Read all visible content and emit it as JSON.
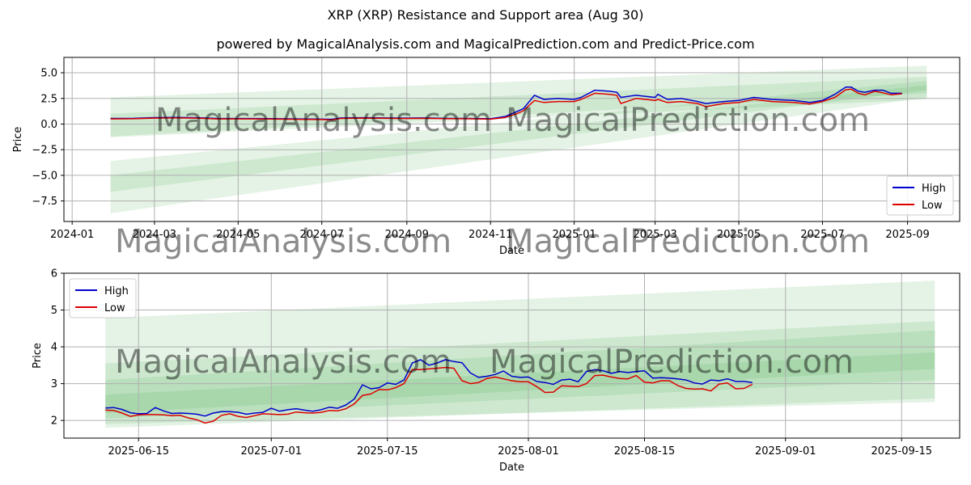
{
  "suptitle": "XRP (XRP) Resistance and Support area (Aug 30)",
  "watermarks": [
    "MagicalAnalysis.com",
    "MagicalPrediction.com"
  ],
  "colors": {
    "high": "#0000cc",
    "low": "#dd0000",
    "band": "#4caf50",
    "grid": "#b0b0b0"
  },
  "chart_data": [
    {
      "type": "line",
      "title": "powered by MagicalAnalysis.com and MagicalPrediction.com and Predict-Price.com",
      "xlabel": "Date",
      "ylabel": "Price",
      "x_range": [
        "2023-12-26",
        "2025-10-09"
      ],
      "ylim": [
        -9.5,
        6.5
      ],
      "yticks": [
        -7.5,
        -5.0,
        -2.5,
        0.0,
        2.5,
        5.0
      ],
      "ytick_labels": [
        "−7.5",
        "−5.0",
        "−2.5",
        "0.0",
        "2.5",
        "5.0"
      ],
      "xticks": [
        "2024-01-01",
        "2024-03-01",
        "2024-05-01",
        "2024-07-01",
        "2024-09-01",
        "2024-11-01",
        "2025-01-01",
        "2025-03-01",
        "2025-05-01",
        "2025-07-01",
        "2025-09-01"
      ],
      "xtick_labels": [
        "2024-01",
        "2024-03",
        "2024-05",
        "2024-07",
        "2024-09",
        "2024-11",
        "2025-01",
        "2025-03",
        "2025-05",
        "2025-07",
        "2025-09"
      ],
      "grid": true,
      "legend": "lower right",
      "bands": [
        {
          "x": [
            "2024-01-29",
            "2025-09-15"
          ],
          "upper": [
            2.6,
            5.7
          ],
          "lower": [
            -1.3,
            2.4
          ]
        },
        {
          "x": [
            "2024-01-29",
            "2025-09-15"
          ],
          "upper": [
            1.0,
            4.6
          ],
          "lower": [
            -1.2,
            3.0
          ]
        },
        {
          "x": [
            "2024-01-29",
            "2025-09-15"
          ],
          "upper": [
            -3.6,
            4.2
          ],
          "lower": [
            -8.7,
            2.6
          ]
        },
        {
          "x": [
            "2024-01-29",
            "2025-09-15"
          ],
          "upper": [
            -5.0,
            3.8
          ],
          "lower": [
            -6.6,
            3.3
          ]
        }
      ],
      "series": [
        {
          "name": "High",
          "x": [
            "2024-01-29",
            "2024-02-15",
            "2024-03-01",
            "2024-03-15",
            "2024-04-01",
            "2024-04-15",
            "2024-05-01",
            "2024-05-15",
            "2024-06-01",
            "2024-06-15",
            "2024-07-01",
            "2024-07-08",
            "2024-07-15",
            "2024-08-01",
            "2024-08-15",
            "2024-09-01",
            "2024-09-15",
            "2024-10-01",
            "2024-10-15",
            "2024-11-01",
            "2024-11-12",
            "2024-11-20",
            "2024-11-25",
            "2024-12-03",
            "2024-12-10",
            "2024-12-20",
            "2025-01-01",
            "2025-01-06",
            "2025-01-16",
            "2025-01-27",
            "2025-02-01",
            "2025-02-04",
            "2025-02-15",
            "2025-03-01",
            "2025-03-03",
            "2025-03-10",
            "2025-03-20",
            "2025-04-01",
            "2025-04-07",
            "2025-04-20",
            "2025-05-01",
            "2025-05-12",
            "2025-05-25",
            "2025-06-10",
            "2025-06-22",
            "2025-07-01",
            "2025-07-10",
            "2025-07-18",
            "2025-07-22",
            "2025-07-27",
            "2025-08-01",
            "2025-08-08",
            "2025-08-14",
            "2025-08-20",
            "2025-08-28"
          ],
          "values": [
            0.55,
            0.56,
            0.63,
            0.64,
            0.62,
            0.55,
            0.54,
            0.54,
            0.52,
            0.5,
            0.48,
            0.46,
            0.6,
            0.62,
            0.6,
            0.58,
            0.6,
            0.55,
            0.55,
            0.52,
            0.75,
            1.2,
            1.5,
            2.8,
            2.4,
            2.5,
            2.4,
            2.6,
            3.3,
            3.2,
            3.1,
            2.6,
            2.8,
            2.6,
            2.9,
            2.4,
            2.5,
            2.2,
            2.0,
            2.2,
            2.3,
            2.6,
            2.4,
            2.3,
            2.1,
            2.3,
            2.9,
            3.6,
            3.6,
            3.2,
            3.1,
            3.3,
            3.3,
            3.0,
            3.0
          ]
        },
        {
          "name": "Low",
          "x": [
            "2024-01-29",
            "2024-02-15",
            "2024-03-01",
            "2024-03-15",
            "2024-04-01",
            "2024-04-15",
            "2024-05-01",
            "2024-05-15",
            "2024-06-01",
            "2024-06-15",
            "2024-07-01",
            "2024-07-08",
            "2024-07-15",
            "2024-08-01",
            "2024-08-15",
            "2024-09-01",
            "2024-09-15",
            "2024-10-01",
            "2024-10-15",
            "2024-11-01",
            "2024-11-12",
            "2024-11-20",
            "2024-11-25",
            "2024-12-03",
            "2024-12-10",
            "2024-12-20",
            "2025-01-01",
            "2025-01-06",
            "2025-01-16",
            "2025-01-27",
            "2025-02-01",
            "2025-02-04",
            "2025-02-15",
            "2025-03-01",
            "2025-03-03",
            "2025-03-10",
            "2025-03-20",
            "2025-04-01",
            "2025-04-07",
            "2025-04-20",
            "2025-05-01",
            "2025-05-12",
            "2025-05-25",
            "2025-06-10",
            "2025-06-22",
            "2025-07-01",
            "2025-07-10",
            "2025-07-18",
            "2025-07-22",
            "2025-07-27",
            "2025-08-01",
            "2025-08-08",
            "2025-08-14",
            "2025-08-20",
            "2025-08-28"
          ],
          "values": [
            0.5,
            0.52,
            0.58,
            0.6,
            0.58,
            0.5,
            0.5,
            0.5,
            0.48,
            0.46,
            0.44,
            0.4,
            0.55,
            0.58,
            0.56,
            0.54,
            0.56,
            0.52,
            0.52,
            0.48,
            0.65,
            1.0,
            1.3,
            2.3,
            2.1,
            2.2,
            2.2,
            2.4,
            3.0,
            2.9,
            2.8,
            2.0,
            2.5,
            2.3,
            2.4,
            2.1,
            2.2,
            2.0,
            1.7,
            2.0,
            2.1,
            2.4,
            2.2,
            2.1,
            1.95,
            2.2,
            2.6,
            3.35,
            3.4,
            3.0,
            2.85,
            3.2,
            3.05,
            2.85,
            2.95
          ]
        }
      ]
    },
    {
      "type": "line",
      "xlabel": "Date",
      "ylabel": "Price",
      "x_range": [
        "2025-06-06",
        "2025-09-22"
      ],
      "ylim": [
        1.52,
        6.0
      ],
      "yticks": [
        2,
        3,
        4,
        5,
        6
      ],
      "ytick_labels": [
        "2",
        "3",
        "4",
        "5",
        "6"
      ],
      "xticks": [
        "2025-06-15",
        "2025-07-01",
        "2025-07-15",
        "2025-08-01",
        "2025-08-15",
        "2025-09-01",
        "2025-09-15"
      ],
      "xtick_labels": [
        "2025-06-15",
        "2025-07-01",
        "2025-07-15",
        "2025-08-01",
        "2025-08-15",
        "2025-09-01",
        "2025-09-15"
      ],
      "grid": true,
      "legend": "upper left",
      "bands": [
        {
          "x": [
            "2025-06-11",
            "2025-09-19"
          ],
          "upper": [
            4.78,
            5.8
          ],
          "lower": [
            1.9,
            2.5
          ]
        },
        {
          "x": [
            "2025-06-11",
            "2025-09-19"
          ],
          "upper": [
            3.55,
            4.7
          ],
          "lower": [
            1.8,
            2.6
          ]
        },
        {
          "x": [
            "2025-06-11",
            "2025-09-19"
          ],
          "upper": [
            3.1,
            4.45
          ],
          "lower": [
            2.05,
            3.1
          ]
        },
        {
          "x": [
            "2025-06-11",
            "2025-09-19"
          ],
          "upper": [
            2.7,
            3.85
          ],
          "lower": [
            2.2,
            3.4
          ]
        }
      ],
      "series": [
        {
          "name": "High",
          "x": [
            "2025-06-11",
            "2025-06-12",
            "2025-06-13",
            "2025-06-14",
            "2025-06-15",
            "2025-06-16",
            "2025-06-17",
            "2025-06-18",
            "2025-06-19",
            "2025-06-20",
            "2025-06-21",
            "2025-06-22",
            "2025-06-23",
            "2025-06-24",
            "2025-06-25",
            "2025-06-26",
            "2025-06-27",
            "2025-06-28",
            "2025-06-29",
            "2025-06-30",
            "2025-07-01",
            "2025-07-02",
            "2025-07-03",
            "2025-07-04",
            "2025-07-05",
            "2025-07-06",
            "2025-07-07",
            "2025-07-08",
            "2025-07-09",
            "2025-07-10",
            "2025-07-11",
            "2025-07-12",
            "2025-07-13",
            "2025-07-14",
            "2025-07-15",
            "2025-07-16",
            "2025-07-17",
            "2025-07-18",
            "2025-07-19",
            "2025-07-20",
            "2025-07-21",
            "2025-07-22",
            "2025-07-23",
            "2025-07-24",
            "2025-07-25",
            "2025-07-26",
            "2025-07-27",
            "2025-07-28",
            "2025-07-29",
            "2025-07-30",
            "2025-07-31",
            "2025-08-01",
            "2025-08-02",
            "2025-08-03",
            "2025-08-04",
            "2025-08-05",
            "2025-08-06",
            "2025-08-07",
            "2025-08-08",
            "2025-08-09",
            "2025-08-10",
            "2025-08-11",
            "2025-08-12",
            "2025-08-13",
            "2025-08-14",
            "2025-08-15",
            "2025-08-16",
            "2025-08-17",
            "2025-08-18",
            "2025-08-19",
            "2025-08-20",
            "2025-08-21",
            "2025-08-22",
            "2025-08-23",
            "2025-08-24",
            "2025-08-25",
            "2025-08-26",
            "2025-08-27",
            "2025-08-28"
          ],
          "values": [
            2.34,
            2.35,
            2.3,
            2.21,
            2.18,
            2.19,
            2.35,
            2.26,
            2.19,
            2.2,
            2.19,
            2.17,
            2.12,
            2.2,
            2.24,
            2.24,
            2.22,
            2.17,
            2.2,
            2.22,
            2.33,
            2.25,
            2.29,
            2.32,
            2.28,
            2.25,
            2.29,
            2.36,
            2.33,
            2.42,
            2.58,
            2.97,
            2.86,
            2.89,
            3.02,
            2.98,
            3.1,
            3.56,
            3.65,
            3.5,
            3.56,
            3.65,
            3.6,
            3.57,
            3.29,
            3.17,
            3.2,
            3.25,
            3.34,
            3.2,
            3.17,
            3.18,
            3.06,
            3.03,
            2.98,
            3.1,
            3.12,
            3.05,
            3.33,
            3.38,
            3.35,
            3.28,
            3.33,
            3.3,
            3.33,
            3.35,
            3.15,
            3.16,
            3.15,
            3.13,
            3.1,
            3.02,
            2.99,
            3.1,
            3.08,
            3.13,
            3.06,
            3.06,
            3.03
          ]
        },
        {
          "name": "Low",
          "x": [
            "2025-06-11",
            "2025-06-12",
            "2025-06-13",
            "2025-06-14",
            "2025-06-15",
            "2025-06-16",
            "2025-06-17",
            "2025-06-18",
            "2025-06-19",
            "2025-06-20",
            "2025-06-21",
            "2025-06-22",
            "2025-06-23",
            "2025-06-24",
            "2025-06-25",
            "2025-06-26",
            "2025-06-27",
            "2025-06-28",
            "2025-06-29",
            "2025-06-30",
            "2025-07-01",
            "2025-07-02",
            "2025-07-03",
            "2025-07-04",
            "2025-07-05",
            "2025-07-06",
            "2025-07-07",
            "2025-07-08",
            "2025-07-09",
            "2025-07-10",
            "2025-07-11",
            "2025-07-12",
            "2025-07-13",
            "2025-07-14",
            "2025-07-15",
            "2025-07-16",
            "2025-07-17",
            "2025-07-18",
            "2025-07-19",
            "2025-07-20",
            "2025-07-21",
            "2025-07-22",
            "2025-07-23",
            "2025-07-24",
            "2025-07-25",
            "2025-07-26",
            "2025-07-27",
            "2025-07-28",
            "2025-07-29",
            "2025-07-30",
            "2025-07-31",
            "2025-08-01",
            "2025-08-02",
            "2025-08-03",
            "2025-08-04",
            "2025-08-05",
            "2025-08-06",
            "2025-08-07",
            "2025-08-08",
            "2025-08-09",
            "2025-08-10",
            "2025-08-11",
            "2025-08-12",
            "2025-08-13",
            "2025-08-14",
            "2025-08-15",
            "2025-08-16",
            "2025-08-17",
            "2025-08-18",
            "2025-08-19",
            "2025-08-20",
            "2025-08-21",
            "2025-08-22",
            "2025-08-23",
            "2025-08-24",
            "2025-08-25",
            "2025-08-26",
            "2025-08-27",
            "2025-08-28"
          ],
          "values": [
            2.28,
            2.27,
            2.2,
            2.11,
            2.15,
            2.16,
            2.16,
            2.15,
            2.13,
            2.14,
            2.07,
            2.02,
            1.93,
            1.98,
            2.14,
            2.18,
            2.11,
            2.08,
            2.13,
            2.18,
            2.17,
            2.16,
            2.17,
            2.23,
            2.21,
            2.2,
            2.22,
            2.27,
            2.26,
            2.32,
            2.45,
            2.68,
            2.72,
            2.84,
            2.83,
            2.89,
            3.0,
            3.38,
            3.38,
            3.4,
            3.42,
            3.44,
            3.42,
            3.08,
            3.0,
            3.03,
            3.14,
            3.18,
            3.13,
            3.08,
            3.05,
            3.05,
            2.92,
            2.76,
            2.77,
            2.94,
            2.93,
            2.92,
            3.0,
            3.22,
            3.23,
            3.18,
            3.14,
            3.13,
            3.22,
            3.04,
            3.02,
            3.08,
            3.08,
            2.95,
            2.87,
            2.85,
            2.86,
            2.8,
            2.99,
            3.02,
            2.86,
            2.87,
            2.98
          ]
        }
      ]
    }
  ]
}
